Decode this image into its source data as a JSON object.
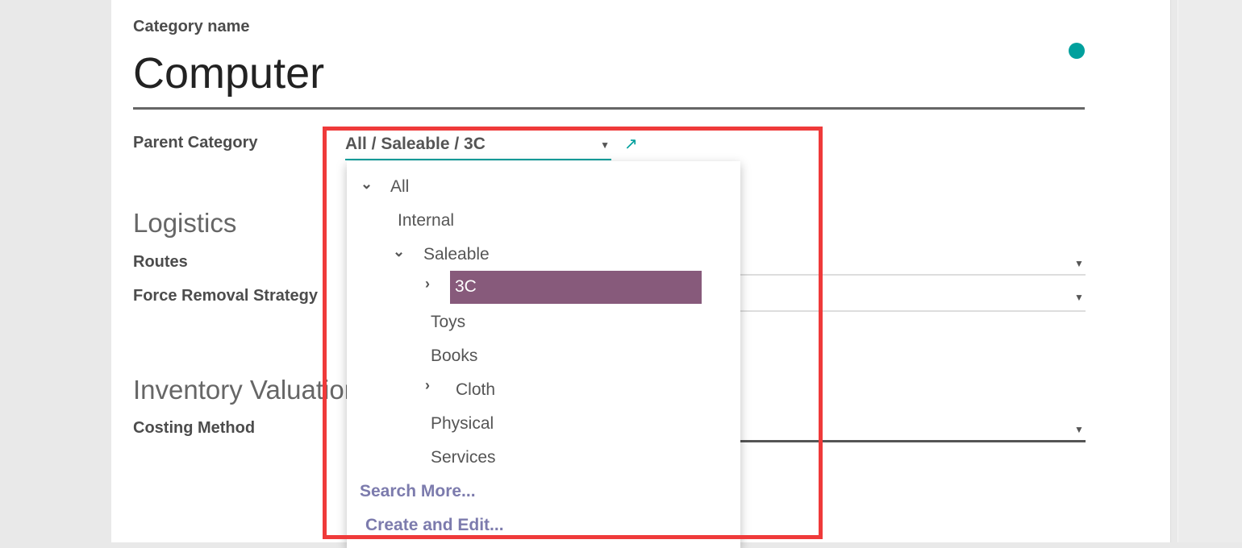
{
  "form": {
    "name_label": "Category name",
    "name_value": "Computer",
    "parent_label": "Parent Category",
    "parent_value": "All / Saleable / 3C",
    "logistics_heading": "Logistics",
    "routes_label": "Routes",
    "removal_label": "Force Removal Strategy",
    "valuation_heading": "Inventory Valuation",
    "costing_label": "Costing Method"
  },
  "dropdown": {
    "items": [
      {
        "label": "All",
        "expander": "chevron-down"
      },
      {
        "label": "Internal"
      },
      {
        "label": "Saleable",
        "expander": "chevron-down"
      },
      {
        "label": "3C",
        "expander": "chevron-right",
        "selected": true
      },
      {
        "label": "Toys"
      },
      {
        "label": "Books"
      },
      {
        "label": "Cloth",
        "expander": "chevron-right"
      },
      {
        "label": "Physical"
      },
      {
        "label": "Services"
      }
    ],
    "search_more": "Search More...",
    "create_edit": "Create and Edit..."
  },
  "colors": {
    "accent": "#00a09d",
    "highlight": "#875a7b",
    "link": "#7c7bad",
    "annotation": "#ef3a3a"
  }
}
